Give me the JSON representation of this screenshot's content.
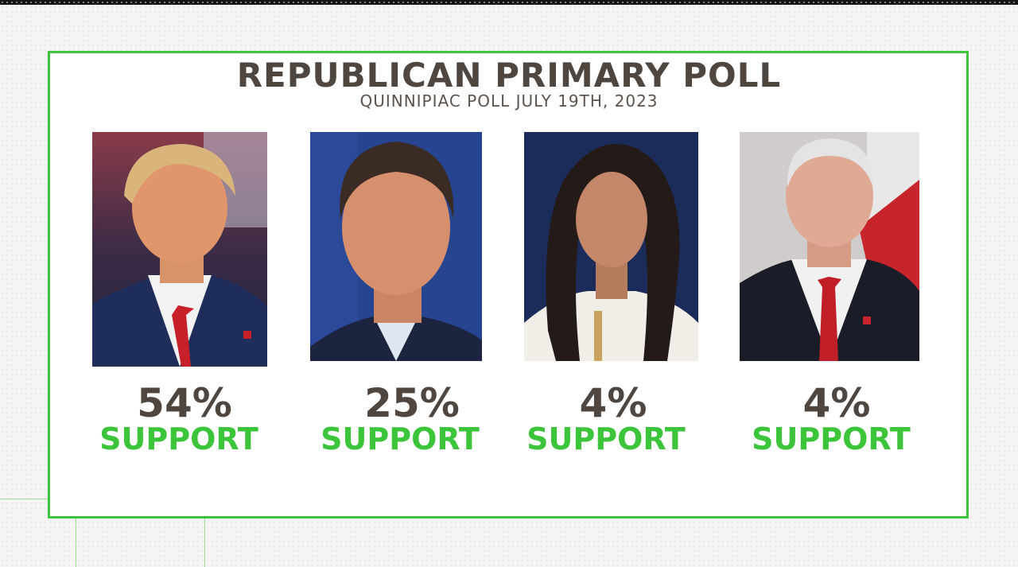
{
  "graphic": {
    "title": "REPUBLICAN PRIMARY POLL",
    "subtitle": "QUINNIPIAC POLL JULY 19TH, 2023",
    "colors": {
      "accent": "#3cc43a",
      "text": "#4e463f",
      "background": "#ffffff"
    }
  },
  "candidates": [
    {
      "percent": "54%",
      "label": "SUPPORT"
    },
    {
      "percent": "25%",
      "label": "SUPPORT"
    },
    {
      "percent": "4%",
      "label": "SUPPORT"
    },
    {
      "percent": "4%",
      "label": "SUPPORT"
    }
  ]
}
